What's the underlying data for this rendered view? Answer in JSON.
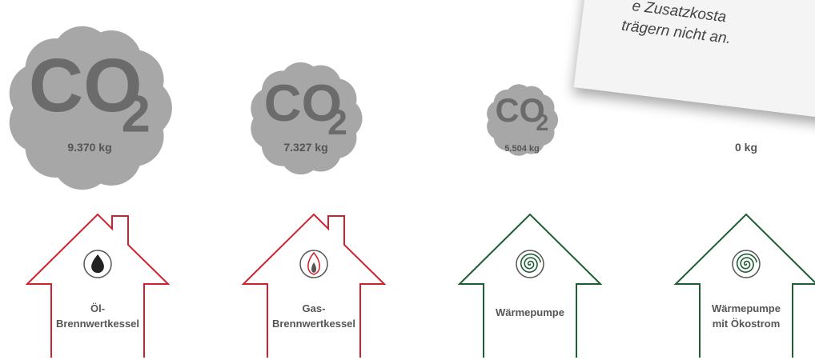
{
  "note": {
    "lines": [
      "e Zusatzkosta",
      "trägern nicht an."
    ]
  },
  "items": [
    {
      "co": "CO",
      "sub": "2",
      "amount": "9.370 kg",
      "label": [
        "Öl-",
        "Brennwertkessel"
      ]
    },
    {
      "co": "CO",
      "sub": "2",
      "amount": "7.327 kg",
      "label": [
        "Gas-",
        "Brennwertkessel"
      ]
    },
    {
      "co": "CO",
      "sub": "2",
      "amount": "5.504 kg",
      "label": [
        "Wärmepumpe"
      ]
    },
    {
      "amount": "0 kg",
      "label": [
        "Wärmepumpe",
        "mit Ökostrom"
      ]
    }
  ]
}
